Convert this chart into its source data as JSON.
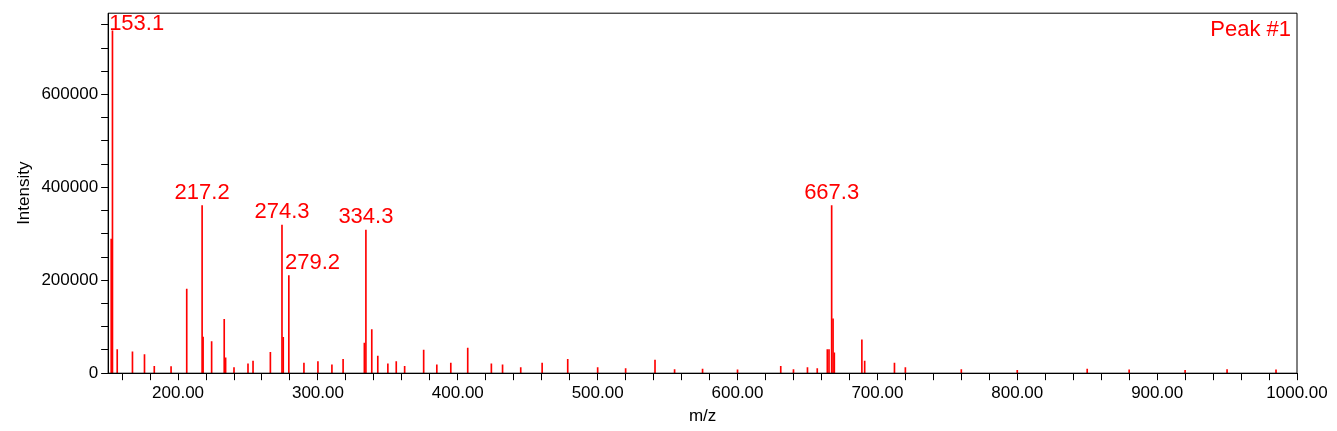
{
  "chart_data": {
    "type": "bar",
    "xlabel": "m/z",
    "ylabel": "Intensity",
    "color": "#ff0000",
    "x": [
      152.2,
      153.1,
      156.5,
      167.4,
      176,
      183,
      195,
      206.2,
      217.2,
      217.9,
      224,
      233,
      234,
      240,
      250,
      253.6,
      266,
      274.3,
      275.2,
      279.2,
      290,
      300,
      310,
      318,
      333.2,
      334.3,
      338.5,
      342.8,
      350,
      356,
      362,
      375.6,
      385,
      395,
      407.1,
      424,
      432,
      445,
      460.3,
      478.6,
      500,
      520,
      541,
      555,
      575,
      600,
      630.9,
      640,
      650,
      657,
      664.2,
      665.4,
      667.3,
      668.3,
      669.2,
      688.9,
      690.9,
      712.2,
      720,
      760,
      800,
      850,
      880,
      920,
      950,
      985
    ],
    "values": [
      289000,
      737000,
      51000,
      46000,
      40000,
      15000,
      14000,
      181000,
      361000,
      78000,
      68000,
      116000,
      33000,
      12000,
      20000,
      26000,
      45000,
      319000,
      77000,
      210000,
      22000,
      25000,
      18000,
      30000,
      65000,
      308000,
      94000,
      37000,
      20000,
      25000,
      15000,
      50000,
      18000,
      22000,
      54000,
      20000,
      18000,
      12000,
      22000,
      30000,
      12000,
      10000,
      28000,
      8000,
      9000,
      7000,
      15000,
      8000,
      12000,
      10000,
      51000,
      51000,
      361000,
      117000,
      44000,
      72000,
      26000,
      22000,
      12000,
      8000,
      6000,
      9000,
      7000,
      6000,
      8000,
      7000
    ],
    "xlim": [
      150,
      1000
    ],
    "xticks": [
      {
        "value": 160,
        "label": null
      },
      {
        "value": 180,
        "label": null
      },
      {
        "value": 200,
        "label": "200.00"
      },
      {
        "value": 220,
        "label": null
      },
      {
        "value": 240,
        "label": null
      },
      {
        "value": 260,
        "label": null
      },
      {
        "value": 280,
        "label": null
      },
      {
        "value": 300,
        "label": "300.00"
      },
      {
        "value": 320,
        "label": null
      },
      {
        "value": 340,
        "label": null
      },
      {
        "value": 360,
        "label": null
      },
      {
        "value": 380,
        "label": null
      },
      {
        "value": 400,
        "label": "400.00"
      },
      {
        "value": 420,
        "label": null
      },
      {
        "value": 440,
        "label": null
      },
      {
        "value": 460,
        "label": null
      },
      {
        "value": 480,
        "label": null
      },
      {
        "value": 500,
        "label": "500.00"
      },
      {
        "value": 520,
        "label": null
      },
      {
        "value": 540,
        "label": null
      },
      {
        "value": 560,
        "label": null
      },
      {
        "value": 580,
        "label": null
      },
      {
        "value": 600,
        "label": "600.00"
      },
      {
        "value": 620,
        "label": null
      },
      {
        "value": 640,
        "label": null
      },
      {
        "value": 660,
        "label": null
      },
      {
        "value": 680,
        "label": null
      },
      {
        "value": 700,
        "label": "700.00"
      },
      {
        "value": 720,
        "label": null
      },
      {
        "value": 740,
        "label": null
      },
      {
        "value": 760,
        "label": null
      },
      {
        "value": 780,
        "label": null
      },
      {
        "value": 800,
        "label": "800.00"
      },
      {
        "value": 820,
        "label": null
      },
      {
        "value": 840,
        "label": null
      },
      {
        "value": 860,
        "label": null
      },
      {
        "value": 880,
        "label": null
      },
      {
        "value": 900,
        "label": "900.00"
      },
      {
        "value": 920,
        "label": null
      },
      {
        "value": 940,
        "label": null
      },
      {
        "value": 960,
        "label": null
      },
      {
        "value": 980,
        "label": null
      },
      {
        "value": 1000,
        "label": "1000.00"
      }
    ],
    "ylim": [
      0,
      775000
    ],
    "yticks": [
      0,
      {
        "value": 50000,
        "label": null
      },
      {
        "value": 100000,
        "label": null
      },
      {
        "value": 150000,
        "label": null
      },
      200000,
      {
        "value": 250000,
        "label": null
      },
      {
        "value": 300000,
        "label": null
      },
      {
        "value": 350000,
        "label": null
      },
      400000,
      {
        "value": 450000,
        "label": null
      },
      {
        "value": 500000,
        "label": null
      },
      {
        "value": 550000,
        "label": null
      },
      600000,
      {
        "value": 650000,
        "label": null
      },
      {
        "value": 700000,
        "label": null
      },
      {
        "value": 750000,
        "label": null
      }
    ],
    "grid": false,
    "legend": false,
    "annotations": [
      {
        "text": "153.1",
        "x": 153.1,
        "y": 737000
      },
      {
        "text": "217.2",
        "x": 217.2,
        "y": 361000
      },
      {
        "text": "274.3",
        "x": 274.3,
        "y": 319000
      },
      {
        "text": "279.2",
        "x": 279.2,
        "y": 210000
      },
      {
        "text": "334.3",
        "x": 334.3,
        "y": 308000
      },
      {
        "text": "667.3",
        "x": 667.3,
        "y": 361000
      },
      "Peak #1"
    ]
  }
}
